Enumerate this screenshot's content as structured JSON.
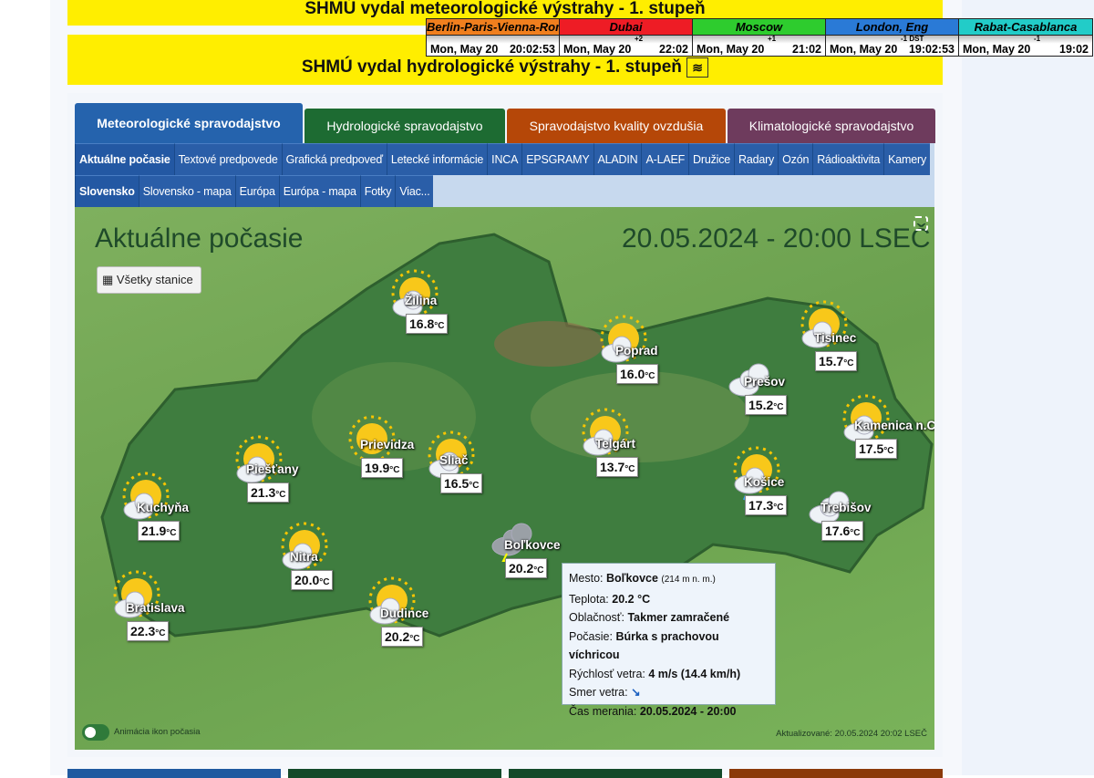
{
  "banners": {
    "meteo": "SHMÚ vydal meteorologické výstrahy - 1. stupeň",
    "hydro": "SHMÚ vydal hydrologické výstrahy - 1. stupeň"
  },
  "world_clock": [
    {
      "city": "Berlin-Paris-Vienna-Roma",
      "date": "Mon, May 20",
      "offset": "",
      "time": "20:02:53",
      "color": "#f07f1e"
    },
    {
      "city": "Dubai",
      "date": "Mon, May 20",
      "offset": "+2",
      "time": "22:02",
      "color": "#ee1c25"
    },
    {
      "city": "Moscow",
      "date": "Mon, May 20",
      "offset": "+1",
      "time": "21:02",
      "color": "#2ecc2e"
    },
    {
      "city": "London, Eng",
      "date": "Mon, May 20",
      "offset": "-1 DST",
      "time": "19:02:53",
      "color": "#2a7ad6"
    },
    {
      "city": "Rabat-Casablanca",
      "date": "Mon, May 20",
      "offset": "-1",
      "time": "19:02",
      "color": "#22ccc8"
    }
  ],
  "main_tabs": [
    {
      "label": "Meteorologické spravodajstvo",
      "color": "#2563ad",
      "active": true
    },
    {
      "label": "Hydrologické spravodajstvo",
      "color": "#1d6b32"
    },
    {
      "label": "Spravodajstvo kvality ovzdušia",
      "color": "#b54708"
    },
    {
      "label": "Klimatologické spravodajstvo",
      "color": "#6e3b5d"
    }
  ],
  "sub_tabs": [
    "Aktuálne počasie",
    "Textové predpovede",
    "Grafická predpoveď",
    "Letecké informácie",
    "INCA",
    "EPSGRAMY",
    "ALADIN",
    "A-LAEF",
    "Družice",
    "Radary",
    "Ozón",
    "Rádioaktivita",
    "Kamery"
  ],
  "sub_sub_tabs": [
    "Slovensko",
    "Slovensko - mapa",
    "Európa",
    "Európa - mapa",
    "Fotky",
    "Viac..."
  ],
  "map": {
    "title": "Aktuálne počasie",
    "datetime": "20.05.2024 - 20:00 LSEČ",
    "all_stations": "Všetky stanice",
    "animation_label": "Animácia ikon počasia",
    "updated": "Aktualizované: 20.05.2024 20:02 LSEČ",
    "unit": "°C"
  },
  "cities": [
    {
      "name": "Žilina",
      "temp": "16.8",
      "icon": "sun-cloud"
    },
    {
      "name": "Poprad",
      "temp": "16.0",
      "icon": "sun-cloud"
    },
    {
      "name": "Tisinec",
      "temp": "15.7",
      "icon": "sun-cloud"
    },
    {
      "name": "Prešov",
      "temp": "15.2",
      "icon": "clouds"
    },
    {
      "name": "Kamenica n.C.",
      "temp": "17.5",
      "icon": "sun-cloud"
    },
    {
      "name": "Prievidza",
      "temp": "19.9",
      "icon": "sun"
    },
    {
      "name": "Sliač",
      "temp": "16.5",
      "icon": "sun-cloud"
    },
    {
      "name": "Telgárt",
      "temp": "13.7",
      "icon": "sun-cloud"
    },
    {
      "name": "Piešťany",
      "temp": "21.3",
      "icon": "sun-cloud"
    },
    {
      "name": "Košice",
      "temp": "17.3",
      "icon": "sun-cloud-rain"
    },
    {
      "name": "Trebišov",
      "temp": "17.6",
      "icon": "clouds"
    },
    {
      "name": "Kuchyňa",
      "temp": "21.9",
      "icon": "sun-cloud"
    },
    {
      "name": "Nitra",
      "temp": "20.0",
      "icon": "sun-cloud"
    },
    {
      "name": "Boľkovce",
      "temp": "20.2",
      "icon": "thunderstorm"
    },
    {
      "name": "Bratislava",
      "temp": "22.3",
      "icon": "sun-cloud"
    },
    {
      "name": "Dudince",
      "temp": "20.2",
      "icon": "sun-cloud"
    }
  ],
  "tooltip": {
    "city_label": "Mesto:",
    "city": "Boľkovce",
    "altitude": "(214 m n. m.)",
    "temp_label": "Teplota:",
    "temp": "20.2 °C",
    "cloud_label": "Oblačnosť:",
    "cloud": "Takmer zamračené",
    "weather_label": "Počasie:",
    "weather": "Búrka s prachovou víchricou",
    "wind_label": "Rýchlosť vetra:",
    "wind": "4 m/s (14.4 km/h)",
    "dir_label": "Smer vetra:",
    "dir_icon": "arrow-down-right-icon",
    "time_label": "Čas merania:",
    "time": "20.05.2024 - 20:00"
  }
}
